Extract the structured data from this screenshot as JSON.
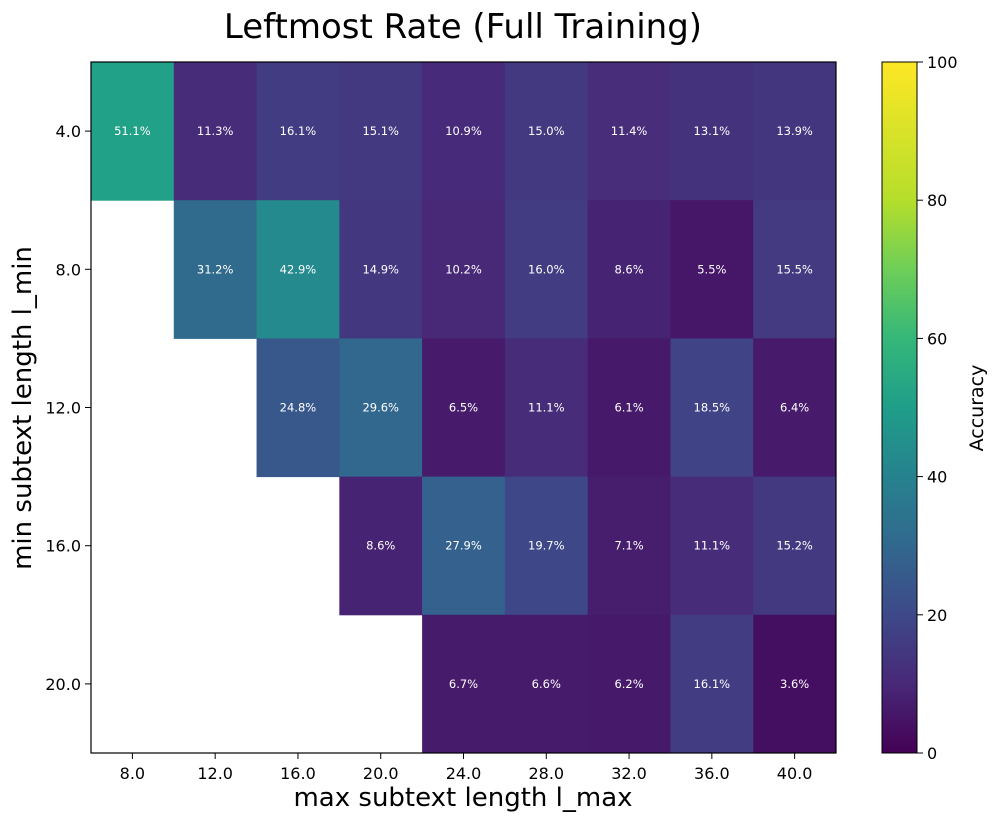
{
  "chart_data": {
    "type": "heatmap",
    "title": "Leftmost Rate (Full Training)",
    "xlabel": "max subtext length l_max",
    "ylabel": "min subtext length l_min",
    "x_categories": [
      "8.0",
      "12.0",
      "16.0",
      "20.0",
      "24.0",
      "28.0",
      "32.0",
      "36.0",
      "40.0"
    ],
    "y_categories": [
      "4.0",
      "8.0",
      "12.0",
      "16.0",
      "20.0"
    ],
    "values": [
      [
        51.1,
        11.3,
        16.1,
        15.1,
        10.9,
        15.0,
        11.4,
        13.1,
        13.9
      ],
      [
        null,
        31.2,
        42.9,
        14.9,
        10.2,
        16.0,
        8.6,
        5.5,
        15.5
      ],
      [
        null,
        null,
        24.8,
        29.6,
        6.5,
        11.1,
        6.1,
        18.5,
        6.4
      ],
      [
        null,
        null,
        null,
        8.6,
        27.9,
        19.7,
        7.1,
        11.1,
        15.2
      ],
      [
        null,
        null,
        null,
        null,
        6.7,
        6.6,
        6.2,
        16.1,
        3.6
      ]
    ],
    "value_suffix": "%",
    "colormap": "viridis",
    "colorbar": {
      "label": "Accuracy",
      "range": [
        0,
        100
      ],
      "ticks": [
        "0",
        "20",
        "40",
        "60",
        "80",
        "100"
      ]
    }
  }
}
